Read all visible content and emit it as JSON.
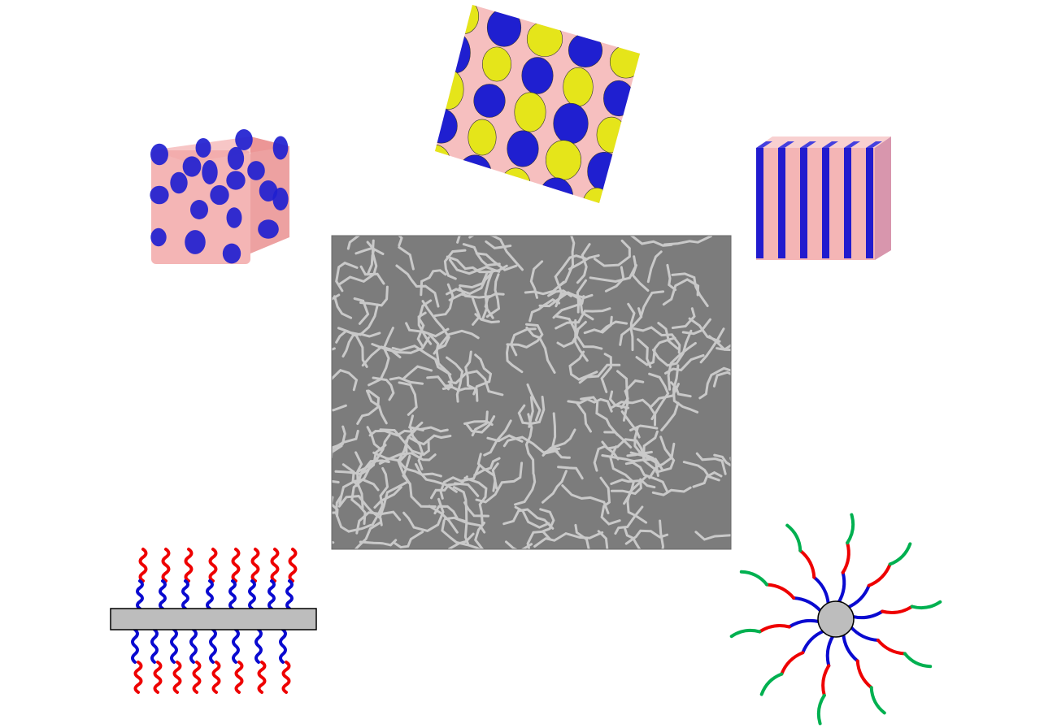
{
  "figure": {
    "background": "#ffffff",
    "colors": {
      "blue_domain": "#1f1fd0",
      "yellow_domain": "#e5e51a",
      "pink_matrix": "#f2a8a8",
      "red_block": "#ee0000",
      "blue_block": "#0a0ad0",
      "green_block": "#00b050",
      "grey_core": "#bdbdbd",
      "tem_background": "#7c7c7c",
      "tem_stripe": "#c9c9c9"
    },
    "panels": [
      {
        "id": "spheres-cube",
        "kind": "3d-morphology",
        "depiction": "blue-spheres-in-pink-matrix"
      },
      {
        "id": "cylinders-cube",
        "kind": "3d-morphology",
        "depiction": "blue-yellow-domains-in-pink-matrix"
      },
      {
        "id": "lamellae-cube",
        "kind": "3d-morphology",
        "depiction": "alternating-blue-pink-lamellae"
      },
      {
        "id": "tem-micrograph",
        "kind": "micrograph",
        "depiction": "fingerprint-stripe-pattern"
      },
      {
        "id": "bottlebrush",
        "kind": "molecular-schematic",
        "depiction": "grey-backbone-with-red-blue-diblock-side-chains"
      },
      {
        "id": "star-polymer",
        "kind": "molecular-schematic",
        "depiction": "grey-core-with-blue-red-green-triblock-arms"
      }
    ]
  }
}
